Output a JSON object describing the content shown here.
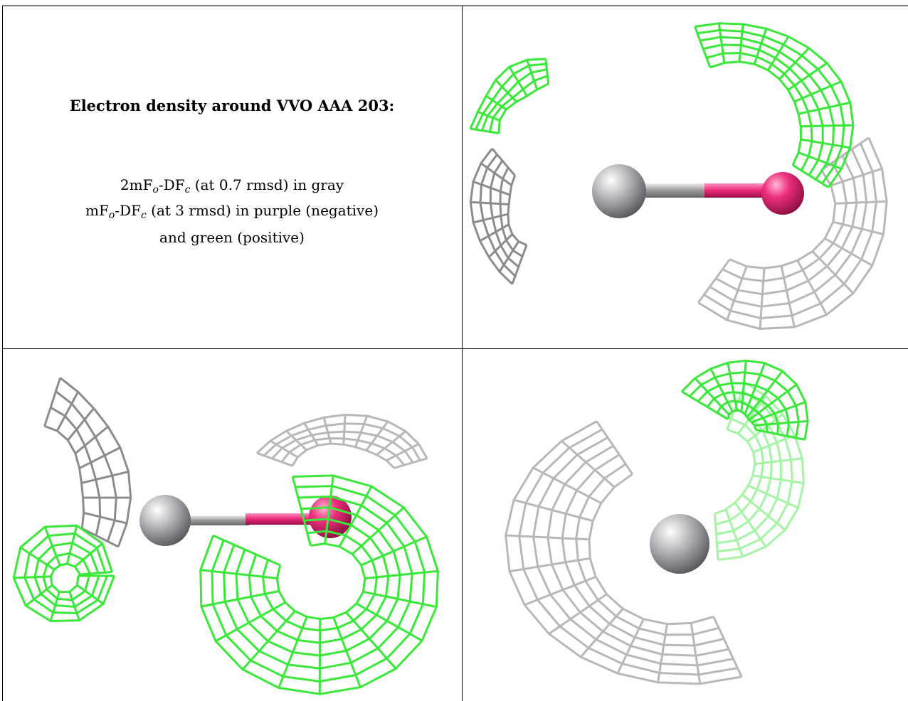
{
  "caption": {
    "title": "Electron density around VVO AAA 203:",
    "lines": [
      [
        {
          "text": "2mF"
        },
        {
          "sub": "o"
        },
        {
          "text": "-DF"
        },
        {
          "sub": "c"
        },
        {
          "text": " (at 0.7 rmsd) in gray"
        }
      ],
      [
        {
          "text": "mF"
        },
        {
          "sub": "o"
        },
        {
          "text": "-DF"
        },
        {
          "sub": "c"
        },
        {
          "text": " (at 3 rmsd) in purple (negative)"
        }
      ],
      [
        {
          "text": "and green (positive)"
        }
      ]
    ]
  }
}
